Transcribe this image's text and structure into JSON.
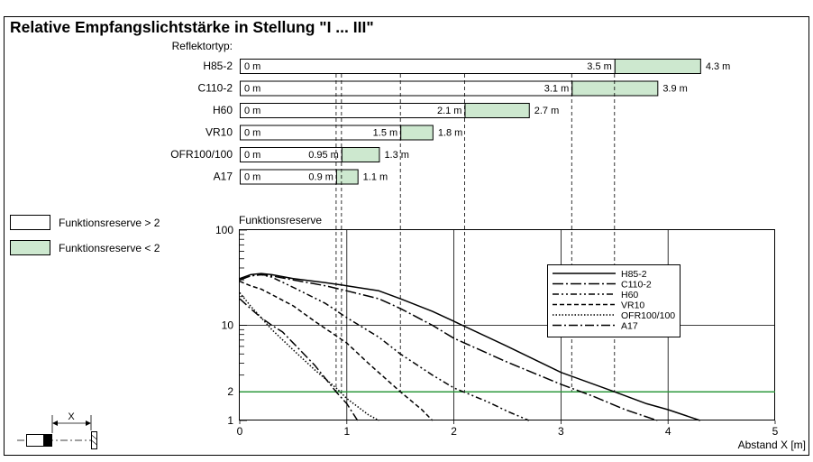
{
  "title": "Relative Empfangslichtstärke in Stellung \"I ... III\"",
  "legend": {
    "items": [
      {
        "label": "Funktionsreserve > 2",
        "color": "#ffffff"
      },
      {
        "label": "Funktionsreserve < 2",
        "color": "#cde8cf"
      }
    ]
  },
  "sensor_icon": {
    "label": "X"
  },
  "chart_data": [
    {
      "type": "bar",
      "subtype": "stacked-range",
      "title": "",
      "category_header": "Reflektortyp:",
      "categories": [
        "H85-2",
        "C110-2",
        "H60",
        "VR10",
        "OFR100/100",
        "A17"
      ],
      "bars": [
        {
          "reflector": "H85-2",
          "start": 0,
          "reserve_gt2_end": 3.5,
          "reserve_lt2_end": 4.3,
          "start_label": "0 m",
          "mid_label": "3.5 m",
          "end_label": "4.3 m"
        },
        {
          "reflector": "C110-2",
          "start": 0,
          "reserve_gt2_end": 3.1,
          "reserve_lt2_end": 3.9,
          "start_label": "0 m",
          "mid_label": "3.1 m",
          "end_label": "3.9 m"
        },
        {
          "reflector": "H60",
          "start": 0,
          "reserve_gt2_end": 2.1,
          "reserve_lt2_end": 2.7,
          "start_label": "0 m",
          "mid_label": "2.1 m",
          "end_label": "2.7 m"
        },
        {
          "reflector": "VR10",
          "start": 0,
          "reserve_gt2_end": 1.5,
          "reserve_lt2_end": 1.8,
          "start_label": "0 m",
          "mid_label": "1.5 m",
          "end_label": "1.8 m"
        },
        {
          "reflector": "OFR100/100",
          "start": 0,
          "reserve_gt2_end": 0.95,
          "reserve_lt2_end": 1.3,
          "start_label": "0 m",
          "mid_label": "0.95 m",
          "end_label": "1.3 m"
        },
        {
          "reflector": "A17",
          "start": 0,
          "reserve_gt2_end": 0.9,
          "reserve_lt2_end": 1.1,
          "start_label": "0 m",
          "mid_label": "0.9 m",
          "end_label": "1.1 m"
        }
      ],
      "xlim": [
        0,
        5
      ],
      "colors": {
        "reserve_gt2": "#ffffff",
        "reserve_lt2": "#cde8cf"
      }
    },
    {
      "type": "line",
      "title": "",
      "ylabel": "Funktionsreserve",
      "xlabel": "Abstand X [m]",
      "xlim": [
        0,
        5
      ],
      "ylim": [
        1,
        100
      ],
      "yscale": "log",
      "x_ticks": [
        "0",
        "1",
        "2",
        "3",
        "4",
        "5"
      ],
      "y_ticks": [
        "1",
        "2",
        "10",
        "100"
      ],
      "grid": true,
      "legend_position": "center-right",
      "threshold": {
        "y": 2,
        "color": "#2e9a3e"
      },
      "series": [
        {
          "name": "H85-2",
          "dash": "solid",
          "x": [
            0,
            0.1,
            0.2,
            0.3,
            0.5,
            0.8,
            1.0,
            1.3,
            1.5,
            1.8,
            2.0,
            2.5,
            3.0,
            3.5,
            3.8,
            4.0,
            4.3
          ],
          "y": [
            31,
            34,
            35,
            34,
            31,
            28,
            26,
            23,
            19,
            14,
            11,
            6,
            3.2,
            2.0,
            1.5,
            1.3,
            1.0
          ]
        },
        {
          "name": "C110-2",
          "dash": "12,3,2,3",
          "x": [
            0,
            0.1,
            0.2,
            0.3,
            0.5,
            0.8,
            1.0,
            1.3,
            1.5,
            1.8,
            2.0,
            2.5,
            3.0,
            3.3,
            3.6,
            3.9
          ],
          "y": [
            30,
            33,
            34,
            33,
            30,
            26,
            23,
            19,
            15,
            10,
            7.3,
            4.1,
            2.4,
            1.8,
            1.3,
            1.0
          ]
        },
        {
          "name": "H60",
          "dash": "7,3,2,3,2,3",
          "x": [
            0,
            0.1,
            0.2,
            0.3,
            0.5,
            0.8,
            1.0,
            1.3,
            1.5,
            1.8,
            2.0,
            2.3,
            2.5,
            2.7
          ],
          "y": [
            30,
            33,
            34,
            32,
            25,
            17,
            12,
            7.5,
            5.0,
            3.0,
            2.2,
            1.6,
            1.25,
            1.0
          ]
        },
        {
          "name": "VR10",
          "dash": "5,3",
          "x": [
            0,
            0.1,
            0.2,
            0.3,
            0.5,
            0.7,
            1.0,
            1.2,
            1.5,
            1.7,
            1.8
          ],
          "y": [
            29,
            26,
            24,
            21,
            16,
            11,
            6.5,
            4.0,
            2.0,
            1.3,
            1.0
          ]
        },
        {
          "name": "OFR100/100",
          "dash": "1.5,2",
          "x": [
            0,
            0.1,
            0.2,
            0.3,
            0.5,
            0.7,
            0.9,
            1.0,
            1.1,
            1.2,
            1.3
          ],
          "y": [
            22,
            16,
            12,
            9,
            5.5,
            3.4,
            2.2,
            1.7,
            1.4,
            1.15,
            1.0
          ]
        },
        {
          "name": "A17",
          "dash": "10,3,2,3",
          "x": [
            0,
            0.1,
            0.2,
            0.3,
            0.4,
            0.5,
            0.7,
            0.9,
            1.0,
            1.1
          ],
          "y": [
            19,
            15,
            12,
            10,
            8.5,
            6.5,
            3.8,
            2.0,
            1.5,
            1.0
          ]
        }
      ],
      "guide_distances": [
        0.9,
        0.95,
        1.5,
        2.1,
        3.1,
        3.5
      ]
    }
  ]
}
